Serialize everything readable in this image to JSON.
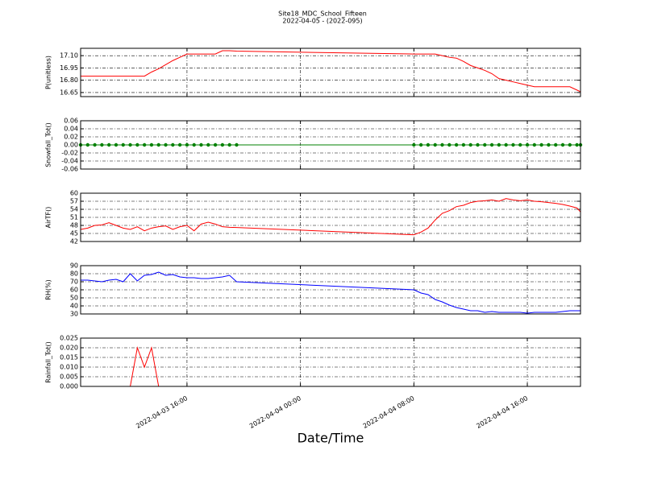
{
  "title": "Site18_MDC_School_Fifteen",
  "subtitle": "2022-04-05 - (2022-095)",
  "xlabel": "Date/Time",
  "chart_data": [
    {
      "type": "line",
      "ylabel": "P(unitless)",
      "x": [
        "2022-04-03 08:30",
        "2022-04-03 09:00",
        "2022-04-03 09:30",
        "2022-04-03 10:00",
        "2022-04-03 10:30",
        "2022-04-03 11:00",
        "2022-04-03 11:30",
        "2022-04-03 12:00",
        "2022-04-03 12:30",
        "2022-04-03 13:00",
        "2022-04-03 13:30",
        "2022-04-03 14:00",
        "2022-04-03 14:30",
        "2022-04-03 15:00",
        "2022-04-03 15:30",
        "2022-04-03 16:00",
        "2022-04-03 16:30",
        "2022-04-03 17:00",
        "2022-04-03 17:30",
        "2022-04-03 18:00",
        "2022-04-03 18:30",
        "2022-04-03 19:00",
        "2022-04-03 19:30",
        "2022-04-04 08:00",
        "2022-04-04 08:30",
        "2022-04-04 09:00",
        "2022-04-04 09:30",
        "2022-04-04 10:00",
        "2022-04-04 10:30",
        "2022-04-04 11:00",
        "2022-04-04 11:30",
        "2022-04-04 12:00",
        "2022-04-04 12:30",
        "2022-04-04 13:00",
        "2022-04-04 13:30",
        "2022-04-04 14:00",
        "2022-04-04 14:30",
        "2022-04-04 15:00",
        "2022-04-04 15:30",
        "2022-04-04 16:00",
        "2022-04-04 16:30",
        "2022-04-04 17:00",
        "2022-04-04 17:30",
        "2022-04-04 18:00",
        "2022-04-04 18:30",
        "2022-04-04 19:00",
        "2022-04-04 19:30",
        "2022-04-04 19:45"
      ],
      "series": [
        {
          "color": "#ff0000",
          "values": [
            16.85,
            16.85,
            16.85,
            16.85,
            16.85,
            16.85,
            16.85,
            16.85,
            16.85,
            16.85,
            16.9,
            16.94,
            16.99,
            17.04,
            17.08,
            17.12,
            17.12,
            17.12,
            17.12,
            17.12,
            17.16,
            17.16,
            17.155,
            17.12,
            17.12,
            17.12,
            17.12,
            17.1,
            17.08,
            17.07,
            17.03,
            16.98,
            16.95,
            16.92,
            16.88,
            16.82,
            16.8,
            16.78,
            16.76,
            16.74,
            16.72,
            16.72,
            16.72,
            16.72,
            16.72,
            16.72,
            16.68,
            16.66
          ]
        }
      ],
      "xlim": [
        "2022-04-03 08:30",
        "2022-04-04 19:45"
      ],
      "xticks": [
        "2022-04-03 16:00",
        "2022-04-04 00:00",
        "2022-04-04 08:00",
        "2022-04-04 16:00"
      ],
      "ylim": [
        16.6,
        17.19
      ],
      "yticks": [
        {
          "value": 16.65,
          "label": "16.65"
        },
        {
          "value": 16.8,
          "label": "16.80"
        },
        16.95,
        {
          "value": 17.1,
          "label": "17.10"
        }
      ],
      "grid": true
    },
    {
      "type": "line",
      "ylabel": "Snowfall_Tot()",
      "marker": true,
      "x": [
        "2022-04-03 08:30",
        "2022-04-03 09:00",
        "2022-04-03 09:30",
        "2022-04-03 10:00",
        "2022-04-03 10:30",
        "2022-04-03 11:00",
        "2022-04-03 11:30",
        "2022-04-03 12:00",
        "2022-04-03 12:30",
        "2022-04-03 13:00",
        "2022-04-03 13:30",
        "2022-04-03 14:00",
        "2022-04-03 14:30",
        "2022-04-03 15:00",
        "2022-04-03 15:30",
        "2022-04-03 16:00",
        "2022-04-03 16:30",
        "2022-04-03 17:00",
        "2022-04-03 17:30",
        "2022-04-03 18:00",
        "2022-04-03 18:30",
        "2022-04-03 19:00",
        "2022-04-03 19:30",
        "2022-04-04 08:00",
        "2022-04-04 08:30",
        "2022-04-04 09:00",
        "2022-04-04 09:30",
        "2022-04-04 10:00",
        "2022-04-04 10:30",
        "2022-04-04 11:00",
        "2022-04-04 11:30",
        "2022-04-04 12:00",
        "2022-04-04 12:30",
        "2022-04-04 13:00",
        "2022-04-04 13:30",
        "2022-04-04 14:00",
        "2022-04-04 14:30",
        "2022-04-04 15:00",
        "2022-04-04 15:30",
        "2022-04-04 16:00",
        "2022-04-04 16:30",
        "2022-04-04 17:00",
        "2022-04-04 17:30",
        "2022-04-04 18:00",
        "2022-04-04 18:30",
        "2022-04-04 19:00",
        "2022-04-04 19:30",
        "2022-04-04 19:45"
      ],
      "series": [
        {
          "color": "#008000",
          "values": [
            0,
            0,
            0,
            0,
            0,
            0,
            0,
            0,
            0,
            0,
            0,
            0,
            0,
            0,
            0,
            0,
            0,
            0,
            0,
            0,
            0,
            0,
            0,
            0,
            0,
            0,
            0,
            0,
            0,
            0,
            0,
            0,
            0,
            0,
            0,
            0,
            0,
            0,
            0,
            0,
            0,
            0,
            0,
            0,
            0,
            0,
            0,
            0
          ]
        }
      ],
      "xlim": [
        "2022-04-03 08:30",
        "2022-04-04 19:45"
      ],
      "xticks": [
        "2022-04-03 16:00",
        "2022-04-04 00:00",
        "2022-04-04 08:00",
        "2022-04-04 16:00"
      ],
      "ylim": [
        -0.06,
        0.06
      ],
      "yticks": [
        -0.06,
        -0.04,
        -0.02,
        {
          "value": 0,
          "label": "0.00"
        },
        0.02,
        0.04,
        0.06
      ],
      "grid": true
    },
    {
      "type": "line",
      "ylabel": "AirTF()",
      "x": [
        "2022-04-03 08:30",
        "2022-04-03 09:00",
        "2022-04-03 09:30",
        "2022-04-03 10:00",
        "2022-04-03 10:30",
        "2022-04-03 11:00",
        "2022-04-03 11:30",
        "2022-04-03 12:00",
        "2022-04-03 12:30",
        "2022-04-03 13:00",
        "2022-04-03 13:30",
        "2022-04-03 14:00",
        "2022-04-03 14:30",
        "2022-04-03 15:00",
        "2022-04-03 15:30",
        "2022-04-03 16:00",
        "2022-04-03 16:30",
        "2022-04-03 17:00",
        "2022-04-03 17:30",
        "2022-04-03 18:00",
        "2022-04-03 18:30",
        "2022-04-03 19:00",
        "2022-04-03 19:30",
        "2022-04-04 08:00",
        "2022-04-04 08:30",
        "2022-04-04 09:00",
        "2022-04-04 09:30",
        "2022-04-04 10:00",
        "2022-04-04 10:30",
        "2022-04-04 11:00",
        "2022-04-04 11:30",
        "2022-04-04 12:00",
        "2022-04-04 12:30",
        "2022-04-04 13:00",
        "2022-04-04 13:30",
        "2022-04-04 14:00",
        "2022-04-04 14:30",
        "2022-04-04 15:00",
        "2022-04-04 15:30",
        "2022-04-04 16:00",
        "2022-04-04 16:30",
        "2022-04-04 17:00",
        "2022-04-04 17:30",
        "2022-04-04 18:00",
        "2022-04-04 18:30",
        "2022-04-04 19:00",
        "2022-04-04 19:30",
        "2022-04-04 19:45"
      ],
      "series": [
        {
          "color": "#ff0000",
          "values": [
            46.5,
            47,
            48,
            48.2,
            49,
            48,
            47,
            46.5,
            47.5,
            46,
            47,
            47.5,
            47.8,
            46.5,
            47.5,
            48,
            46,
            48.5,
            49.2,
            48.5,
            47.5,
            47.3,
            47.2,
            44.5,
            45.5,
            47,
            50,
            52.5,
            53.5,
            55,
            55.5,
            56.5,
            57,
            57.2,
            57.5,
            57,
            58,
            57.5,
            57.2,
            57.5,
            57,
            56.8,
            56.5,
            56.2,
            55.8,
            55.2,
            54.5,
            53
          ]
        }
      ],
      "xlim": [
        "2022-04-03 08:30",
        "2022-04-04 19:45"
      ],
      "xticks": [
        "2022-04-03 16:00",
        "2022-04-04 00:00",
        "2022-04-04 08:00",
        "2022-04-04 16:00"
      ],
      "ylim": [
        42,
        60
      ],
      "yticks": [
        42,
        45,
        48,
        51,
        54,
        57,
        60
      ],
      "grid": true
    },
    {
      "type": "line",
      "ylabel": "RH(%)",
      "x": [
        "2022-04-03 08:30",
        "2022-04-03 09:00",
        "2022-04-03 09:30",
        "2022-04-03 10:00",
        "2022-04-03 10:30",
        "2022-04-03 11:00",
        "2022-04-03 11:30",
        "2022-04-03 12:00",
        "2022-04-03 12:30",
        "2022-04-03 13:00",
        "2022-04-03 13:30",
        "2022-04-03 14:00",
        "2022-04-03 14:30",
        "2022-04-03 15:00",
        "2022-04-03 15:30",
        "2022-04-03 16:00",
        "2022-04-03 16:30",
        "2022-04-03 17:00",
        "2022-04-03 17:30",
        "2022-04-03 18:00",
        "2022-04-03 18:30",
        "2022-04-03 19:00",
        "2022-04-03 19:30",
        "2022-04-04 08:00",
        "2022-04-04 08:30",
        "2022-04-04 09:00",
        "2022-04-04 09:30",
        "2022-04-04 10:00",
        "2022-04-04 10:30",
        "2022-04-04 11:00",
        "2022-04-04 11:30",
        "2022-04-04 12:00",
        "2022-04-04 12:30",
        "2022-04-04 13:00",
        "2022-04-04 13:30",
        "2022-04-04 14:00",
        "2022-04-04 14:30",
        "2022-04-04 15:00",
        "2022-04-04 15:30",
        "2022-04-04 16:00",
        "2022-04-04 16:30",
        "2022-04-04 17:00",
        "2022-04-04 17:30",
        "2022-04-04 18:00",
        "2022-04-04 18:30",
        "2022-04-04 19:00",
        "2022-04-04 19:30",
        "2022-04-04 19:45"
      ],
      "series": [
        {
          "color": "#0000ff",
          "values": [
            72,
            72,
            71,
            70,
            72,
            73,
            70,
            80,
            71,
            78,
            79,
            82,
            78,
            79,
            76,
            75,
            75,
            74,
            74,
            75,
            76,
            78,
            70,
            60,
            56,
            54,
            48,
            45,
            41,
            38,
            36,
            34,
            34,
            32,
            33,
            32,
            32,
            32,
            32,
            31,
            32,
            32,
            32,
            32,
            33,
            34,
            34,
            34
          ]
        }
      ],
      "xlim": [
        "2022-04-03 08:30",
        "2022-04-04 19:45"
      ],
      "xticks": [
        "2022-04-03 16:00",
        "2022-04-04 00:00",
        "2022-04-04 08:00",
        "2022-04-04 16:00"
      ],
      "ylim": [
        30,
        90
      ],
      "yticks": [
        30,
        40,
        50,
        60,
        70,
        80,
        90
      ],
      "grid": true
    },
    {
      "type": "line",
      "ylabel": "Rainfall_Tot()",
      "x": [
        "2022-04-03 08:30",
        "2022-04-03 09:00",
        "2022-04-03 09:30",
        "2022-04-03 10:00",
        "2022-04-03 10:30",
        "2022-04-03 11:00",
        "2022-04-03 11:30",
        "2022-04-03 12:00",
        "2022-04-03 12:30",
        "2022-04-03 13:00",
        "2022-04-03 13:30",
        "2022-04-03 14:00",
        "2022-04-03 14:30",
        "2022-04-03 15:00",
        "2022-04-03 15:30",
        "2022-04-03 16:00",
        "2022-04-03 16:30",
        "2022-04-03 17:00",
        "2022-04-03 17:30",
        "2022-04-03 18:00",
        "2022-04-03 18:30",
        "2022-04-03 19:00",
        "2022-04-03 19:30",
        "2022-04-04 08:00",
        "2022-04-04 08:30",
        "2022-04-04 09:00",
        "2022-04-04 09:30",
        "2022-04-04 10:00",
        "2022-04-04 10:30",
        "2022-04-04 11:00",
        "2022-04-04 11:30",
        "2022-04-04 12:00",
        "2022-04-04 12:30",
        "2022-04-04 13:00",
        "2022-04-04 13:30",
        "2022-04-04 14:00",
        "2022-04-04 14:30",
        "2022-04-04 15:00",
        "2022-04-04 15:30",
        "2022-04-04 16:00",
        "2022-04-04 16:30",
        "2022-04-04 17:00",
        "2022-04-04 17:30",
        "2022-04-04 18:00",
        "2022-04-04 18:30",
        "2022-04-04 19:00",
        "2022-04-04 19:30",
        "2022-04-04 19:45"
      ],
      "series": [
        {
          "color": "#ff0000",
          "values": [
            0,
            0,
            0,
            0,
            0,
            0,
            0,
            0,
            0.02,
            0.01,
            0.02,
            0,
            0,
            0,
            0,
            0,
            0,
            0,
            0,
            0,
            0,
            0,
            0,
            0,
            0,
            0,
            0,
            0,
            0,
            0,
            0,
            0,
            0,
            0,
            0,
            0,
            0,
            0,
            0,
            0,
            0,
            0,
            0,
            0,
            0,
            0,
            0,
            0
          ]
        }
      ],
      "xlim": [
        "2022-04-03 08:30",
        "2022-04-04 19:45"
      ],
      "xticks": [
        "2022-04-03 16:00",
        "2022-04-04 00:00",
        "2022-04-04 08:00",
        "2022-04-04 16:00"
      ],
      "ylim": [
        0,
        0.025
      ],
      "yticks": [
        {
          "value": 0,
          "label": "0.000"
        },
        0.005,
        {
          "value": 0.01,
          "label": "0.010"
        },
        0.015,
        {
          "value": 0.02,
          "label": "0.020"
        },
        0.025
      ],
      "grid": true,
      "show_xtick_labels": true
    }
  ]
}
